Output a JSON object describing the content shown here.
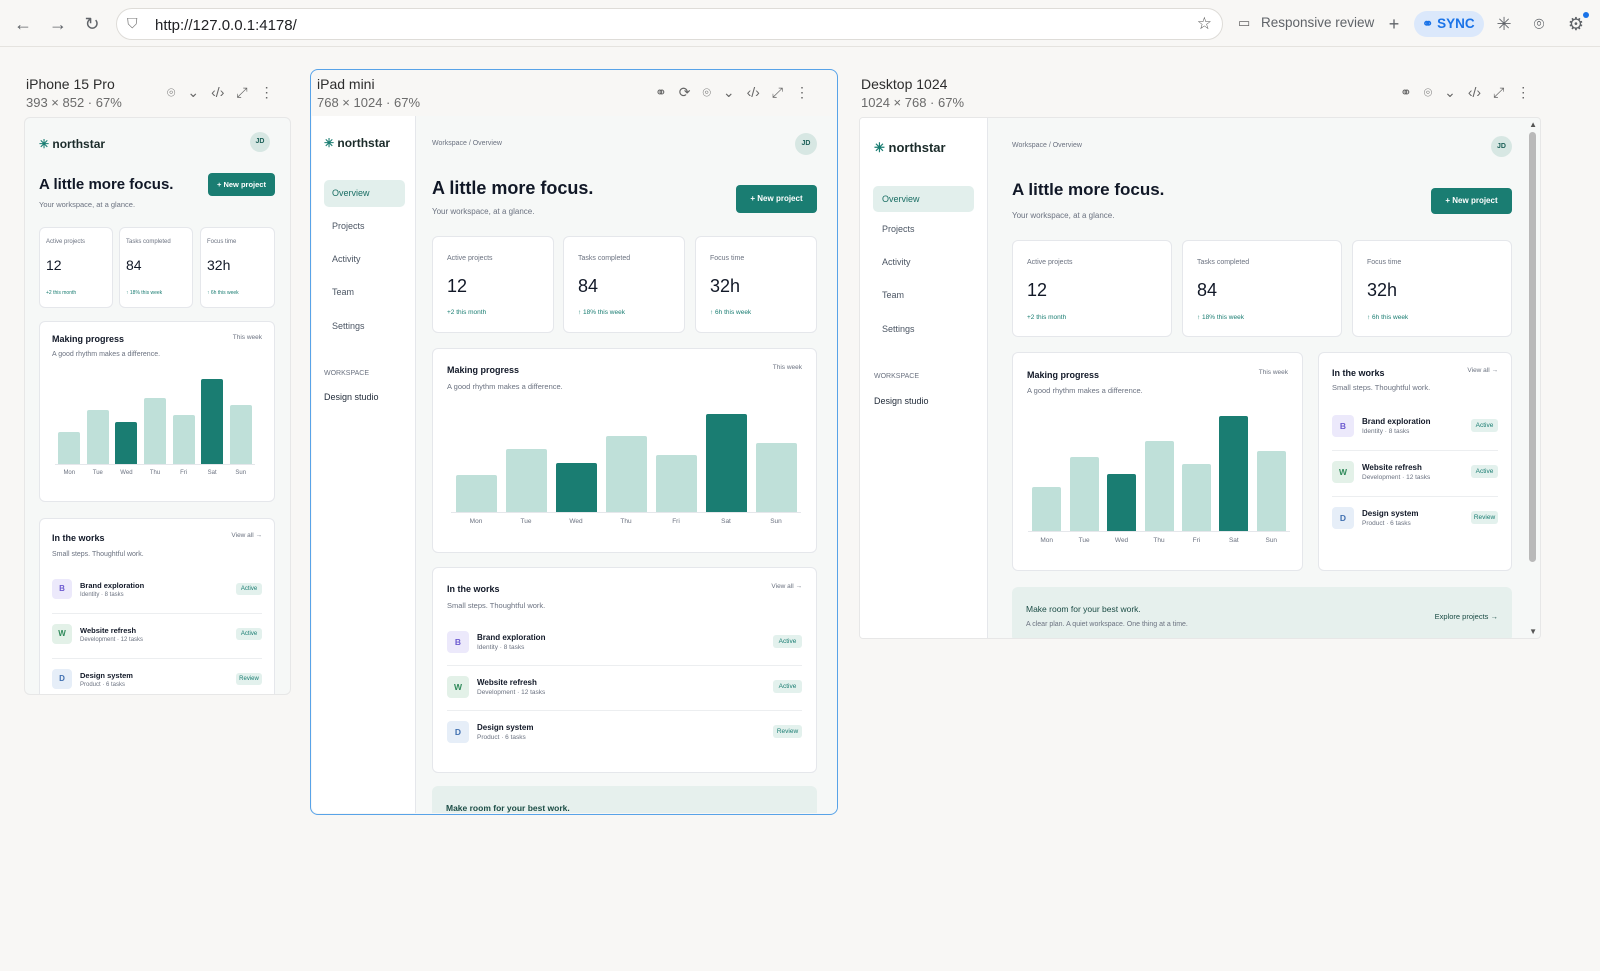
{
  "browser": {
    "url": "http://127.0.0.1:4178/",
    "responsive_review": "Responsive review",
    "sync_label": "SYNC"
  },
  "devices": {
    "iphone": {
      "title": "iPhone 15 Pro",
      "subtitle": "393 × 852 · 67%"
    },
    "ipad": {
      "title": "iPad mini",
      "subtitle": "768 × 1024 · 67%"
    },
    "desktop": {
      "title": "Desktop 1024",
      "subtitle": "1024 × 768 · 67%"
    }
  },
  "app": {
    "logo": "northstar",
    "avatar": "JD",
    "breadcrumb": "Workspace / Overview",
    "heading": "A little more focus.",
    "subheading": "Your workspace, at a glance.",
    "new_project": "+ New project",
    "nav": [
      "Overview",
      "Projects",
      "Activity",
      "Team",
      "Settings"
    ],
    "workspace_label": "WORKSPACE",
    "workspace_name": "Design studio",
    "stats": [
      {
        "label": "Active projects",
        "value": "12",
        "delta": "+2 this month"
      },
      {
        "label": "Tasks completed",
        "value": "84",
        "delta": "↑ 18% this week"
      },
      {
        "label": "Focus time",
        "value": "32h",
        "delta": "↑ 6h this week"
      }
    ],
    "progress": {
      "title": "Making progress",
      "subtitle": "A good rhythm makes a difference.",
      "period": "This week"
    },
    "works": {
      "title": "In the works",
      "subtitle": "Small steps. Thoughtful work.",
      "view_all": "View all →",
      "items": [
        {
          "initial": "B",
          "name": "Brand exploration",
          "meta": "Identity · 8 tasks",
          "status": "Active",
          "tile_bg": "#ece9fb",
          "tile_fg": "#6d5bd0"
        },
        {
          "initial": "W",
          "name": "Website refresh",
          "meta": "Development · 12 tasks",
          "status": "Active",
          "tile_bg": "#e3f1e8",
          "tile_fg": "#2f8a5a"
        },
        {
          "initial": "D",
          "name": "Design system",
          "meta": "Product · 6 tasks",
          "status": "Review",
          "tile_bg": "#e6eef8",
          "tile_fg": "#3f6fb0"
        }
      ]
    },
    "banner": {
      "title": "Make room for your best work.",
      "text": "A clear plan. A quiet workspace. One thing at a time.",
      "link": "Explore projects →"
    }
  },
  "chart_data": {
    "type": "bar",
    "title": "Making progress",
    "categories": [
      "Mon",
      "Tue",
      "Wed",
      "Thu",
      "Fri",
      "Sat",
      "Sun"
    ],
    "values": [
      38,
      64,
      50,
      78,
      58,
      100,
      70
    ],
    "highlighted": [
      "Wed",
      "Sat"
    ],
    "colors": {
      "default": "#bfe0d9",
      "highlight": "#1a7d72"
    }
  }
}
